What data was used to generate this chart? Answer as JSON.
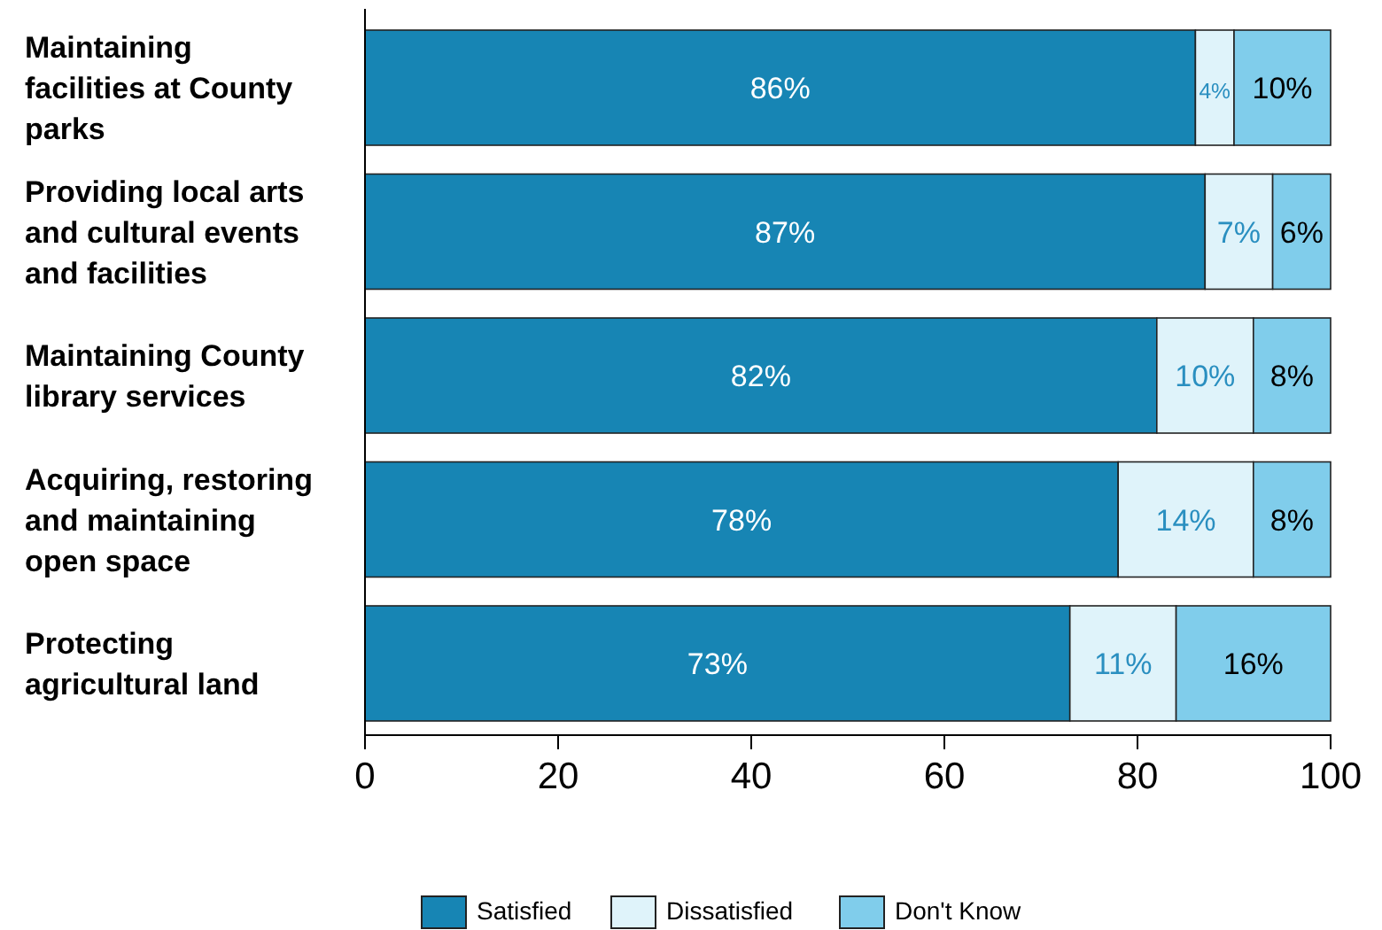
{
  "chart_data": {
    "type": "bar",
    "orientation": "horizontal",
    "stacked": true,
    "categories": [
      "Maintaining facilities at County parks",
      "Providing local arts and cultural events and facilities",
      "Maintaining County library services",
      "Acquiring, restoring and maintaining open space",
      "Protecting agricultural land"
    ],
    "series": [
      {
        "name": "Satisfied",
        "color": "#1785b4",
        "values": [
          86,
          87,
          82,
          78,
          73
        ],
        "value_labels": [
          "86%",
          "87%",
          "82%",
          "78%",
          "73%"
        ]
      },
      {
        "name": "Dissatisfied",
        "color": "#dff3fa",
        "values": [
          4,
          7,
          10,
          14,
          11
        ],
        "value_labels": [
          "4%",
          "7%",
          "10%",
          "14%",
          "11%"
        ]
      },
      {
        "name": "Don't Know",
        "color": "#80cdeb",
        "values": [
          10,
          6,
          8,
          8,
          16
        ],
        "value_labels": [
          "10%",
          "6%",
          "8%",
          "8%",
          "16%"
        ]
      }
    ],
    "xlim": [
      0,
      100
    ],
    "xticks": [
      0,
      20,
      40,
      60,
      80,
      100
    ],
    "grid": false,
    "legend": "bottom"
  }
}
